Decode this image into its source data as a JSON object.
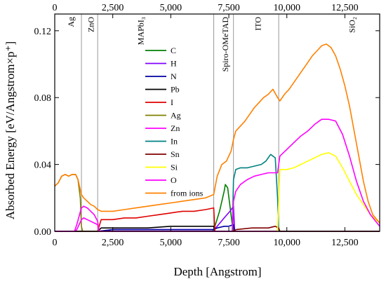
{
  "chart_data": {
    "type": "line",
    "xlabel": "Depth [Angstrom]",
    "ylabel": "Absorbed Energy [eV/Angstrom×p⁺]",
    "xlim": [
      0,
      14000
    ],
    "ylim": [
      0,
      0.13
    ],
    "x_ticks": [
      0,
      2500,
      5000,
      7500,
      10000,
      12500
    ],
    "x_tick_labels": [
      "0",
      "2,500",
      "5,000",
      "7,500",
      "10,000",
      "12,500"
    ],
    "y_ticks": [
      0.0,
      0.04,
      0.08,
      0.12
    ],
    "y_tick_labels": [
      "0.00",
      "0.04",
      "0.08",
      "0.12"
    ],
    "grid": false,
    "legend_position": "center",
    "layer_boundaries": [
      1150,
      1850,
      6850,
      7700,
      9650
    ],
    "layers": [
      {
        "label": "Ag",
        "x": 700
      },
      {
        "label": "ZnO",
        "x": 1550
      },
      {
        "label": "MAPbI₃",
        "x": 3700
      },
      {
        "label": "Spiro-OMeTAD",
        "x": 7350
      },
      {
        "label": "ITO",
        "x": 8750
      },
      {
        "label": "SiO₂",
        "x": 12800
      }
    ],
    "series": [
      {
        "name": "C",
        "color": "#008000",
        "x": [
          0,
          6800,
          6900,
          7100,
          7300,
          7350,
          7450,
          7550,
          7650,
          7700,
          7750,
          14000
        ],
        "y": [
          0,
          0,
          0.003,
          0.012,
          0.024,
          0.028,
          0.026,
          0.015,
          0.004,
          0,
          0,
          0
        ]
      },
      {
        "name": "H",
        "color": "#8000ff",
        "x": [
          0,
          1850,
          2500,
          5000,
          6850,
          7000,
          7300,
          7550,
          7700,
          7750,
          14000
        ],
        "y": [
          0,
          0,
          0.001,
          0.001,
          0.001,
          0.003,
          0.008,
          0.012,
          0.015,
          0,
          0
        ]
      },
      {
        "name": "N",
        "color": "#0000a0",
        "x": [
          0,
          1850,
          2500,
          5000,
          6850,
          7000,
          7300,
          7500,
          7700,
          7750,
          14000
        ],
        "y": [
          0,
          0,
          0.001,
          0.001,
          0.001,
          0.002,
          0.003,
          0.003,
          0.004,
          0,
          0
        ]
      },
      {
        "name": "Pb",
        "color": "#000000",
        "x": [
          0,
          1850,
          2000,
          3000,
          4000,
          5000,
          6000,
          6850,
          6900,
          14000
        ],
        "y": [
          0,
          0,
          0.002,
          0.002,
          0.002,
          0.003,
          0.003,
          0.003,
          0,
          0
        ]
      },
      {
        "name": "I",
        "color": "#e00000",
        "x": [
          0,
          1850,
          2000,
          2500,
          3000,
          3500,
          4000,
          4500,
          5000,
          5500,
          6000,
          6500,
          6850,
          6900,
          14000
        ],
        "y": [
          0,
          0,
          0.007,
          0.007,
          0.008,
          0.008,
          0.009,
          0.01,
          0.011,
          0.012,
          0.012,
          0.013,
          0.014,
          0,
          0
        ]
      },
      {
        "name": "Ag",
        "color": "#808000",
        "x": [
          0,
          150,
          300,
          450,
          600,
          750,
          900,
          1000,
          1100,
          1150,
          1200,
          14000
        ],
        "y": [
          0.027,
          0.029,
          0.033,
          0.034,
          0.033,
          0.034,
          0.034,
          0.031,
          0.02,
          0.003,
          0,
          0
        ]
      },
      {
        "name": "Zn",
        "color": "#ff00ff",
        "x": [
          0,
          850,
          950,
          1050,
          1150,
          1250,
          1400,
          1550,
          1700,
          1850,
          1900,
          14000
        ],
        "y": [
          0,
          0,
          0.001,
          0.004,
          0.007,
          0.008,
          0.007,
          0.006,
          0.005,
          0.004,
          0,
          0
        ]
      },
      {
        "name": "In",
        "color": "#008080",
        "x": [
          0,
          7650,
          7700,
          7800,
          8000,
          8300,
          8600,
          8900,
          9100,
          9300,
          9500,
          9600,
          9650,
          9700,
          14000
        ],
        "y": [
          0,
          0,
          0.031,
          0.037,
          0.038,
          0.038,
          0.039,
          0.04,
          0.042,
          0.046,
          0.044,
          0.02,
          0,
          0,
          0
        ]
      },
      {
        "name": "Sn",
        "color": "#800000",
        "x": [
          0,
          7700,
          7800,
          8500,
          9200,
          9500,
          9650,
          9700,
          14000
        ],
        "y": [
          0,
          0,
          0.001,
          0.002,
          0.002,
          0.003,
          0.002,
          0,
          0
        ]
      },
      {
        "name": "Si",
        "color": "#ffff00",
        "x": [
          9600,
          9700,
          10000,
          10300,
          10600,
          10900,
          11200,
          11500,
          11800,
          12100,
          12400,
          12700,
          13000,
          13300,
          13600,
          14000
        ],
        "y": [
          0,
          0.037,
          0.037,
          0.038,
          0.04,
          0.042,
          0.044,
          0.046,
          0.047,
          0.045,
          0.038,
          0.03,
          0.022,
          0.016,
          0.01,
          0.005
        ]
      },
      {
        "name": "O",
        "color": "#ff00ff",
        "x": [
          0,
          850,
          950,
          1050,
          1150,
          1250,
          1400,
          1550,
          1700,
          1850,
          1900,
          7650,
          7700,
          7800,
          8000,
          8300,
          8600,
          8900,
          9200,
          9400,
          9600,
          9700,
          10000,
          10300,
          10600,
          10900,
          11200,
          11500,
          11800,
          12100,
          12400,
          12700,
          13000,
          13300,
          13600,
          14000
        ],
        "y": [
          0,
          0,
          0.004,
          0.009,
          0.014,
          0.015,
          0.014,
          0.012,
          0.01,
          0.006,
          0,
          0,
          0.018,
          0.024,
          0.028,
          0.031,
          0.033,
          0.034,
          0.035,
          0.035,
          0.035,
          0.045,
          0.049,
          0.053,
          0.057,
          0.06,
          0.064,
          0.067,
          0.067,
          0.066,
          0.058,
          0.045,
          0.03,
          0.018,
          0.01,
          0.003
        ]
      },
      {
        "name": "from ions",
        "color": "#ff8000",
        "x": [
          0,
          150,
          300,
          450,
          600,
          750,
          900,
          1000,
          1100,
          1150,
          1250,
          1400,
          1550,
          1700,
          1850,
          2000,
          2500,
          3000,
          3500,
          4000,
          4500,
          5000,
          5500,
          6000,
          6500,
          6850,
          7000,
          7200,
          7400,
          7600,
          7700,
          7800,
          8000,
          8200,
          8400,
          8600,
          8800,
          9000,
          9200,
          9400,
          9600,
          9700,
          9900,
          10100,
          10300,
          10500,
          10700,
          10900,
          11100,
          11300,
          11500,
          11700,
          11900,
          12100,
          12300,
          12500,
          12700,
          12900,
          13100,
          13300,
          13500,
          13700,
          14000
        ],
        "y": [
          0.027,
          0.029,
          0.033,
          0.034,
          0.033,
          0.034,
          0.034,
          0.031,
          0.025,
          0.022,
          0.02,
          0.018,
          0.016,
          0.015,
          0.013,
          0.012,
          0.012,
          0.013,
          0.014,
          0.015,
          0.016,
          0.017,
          0.018,
          0.019,
          0.02,
          0.022,
          0.033,
          0.04,
          0.042,
          0.048,
          0.055,
          0.06,
          0.063,
          0.066,
          0.07,
          0.074,
          0.077,
          0.08,
          0.082,
          0.085,
          0.08,
          0.078,
          0.082,
          0.085,
          0.089,
          0.093,
          0.097,
          0.101,
          0.105,
          0.108,
          0.111,
          0.112,
          0.11,
          0.105,
          0.097,
          0.087,
          0.075,
          0.06,
          0.045,
          0.03,
          0.018,
          0.01,
          0.005
        ]
      }
    ]
  }
}
